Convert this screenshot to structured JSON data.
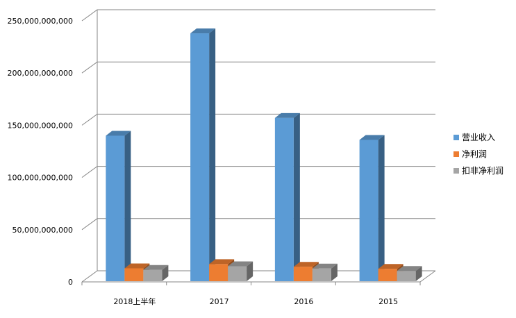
{
  "chart_data": {
    "type": "bar",
    "title": "",
    "xlabel": "",
    "ylabel": "",
    "categories": [
      "2018上半年",
      "2017",
      "2016",
      "2015"
    ],
    "series": [
      {
        "name": "营业收入",
        "values": [
          140000000000,
          238000000000,
          157000000000,
          136000000000
        ],
        "color": "#5b9bd5"
      },
      {
        "name": "净利润",
        "values": [
          13000000000,
          17000000000,
          14500000000,
          12500000000
        ],
        "color": "#ed7d31"
      },
      {
        "name": "扣非净利润",
        "values": [
          11500000000,
          15000000000,
          12800000000,
          10500000000
        ],
        "color": "#a5a5a5"
      }
    ],
    "ylim": [
      0,
      250000000000
    ],
    "yticks": [
      "0",
      "50,000,000,000",
      "100,000,000,000",
      "150,000,000,000",
      "200,000,000,000",
      "250,000,000,000"
    ],
    "grid": true,
    "legend_position": "right"
  }
}
